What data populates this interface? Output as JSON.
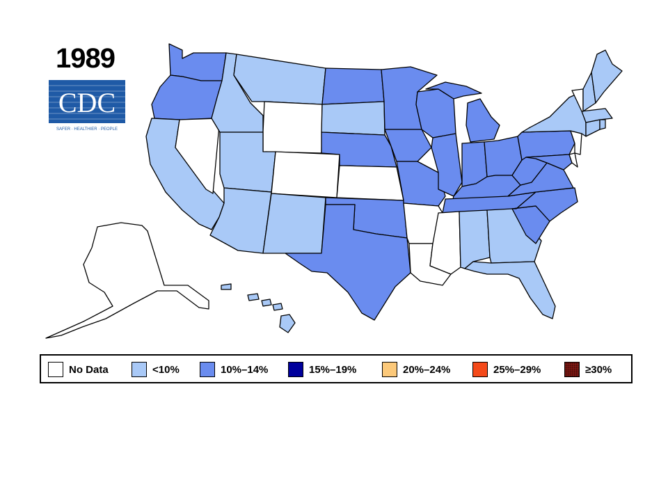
{
  "year": "1989",
  "logo": {
    "text": "CDC",
    "tagline": "SAFER · HEALTHIER · PEOPLE"
  },
  "colors": {
    "no_data": "#ffffff",
    "lt10": "#a9c9f7",
    "p10_14": "#6a8cef",
    "p15_19": "#00009c",
    "p20_24": "#fcc97a",
    "p25_29": "#f44a1a",
    "ge30": "#8b1a14",
    "outline": "#000000"
  },
  "legend": [
    {
      "key": "no_data",
      "label": "No Data"
    },
    {
      "key": "lt10",
      "label": "<10%"
    },
    {
      "key": "p10_14",
      "label": "10%–14%"
    },
    {
      "key": "p15_19",
      "label": "15%–19%"
    },
    {
      "key": "p20_24",
      "label": "20%–24%"
    },
    {
      "key": "p25_29",
      "label": "25%–29%"
    },
    {
      "key": "ge30",
      "label": "≥30%"
    }
  ],
  "states": [
    {
      "id": "WA",
      "class": "p10_14"
    },
    {
      "id": "OR",
      "class": "p10_14"
    },
    {
      "id": "CA",
      "class": "lt10"
    },
    {
      "id": "NV",
      "class": "no_data"
    },
    {
      "id": "ID",
      "class": "lt10"
    },
    {
      "id": "MT",
      "class": "lt10"
    },
    {
      "id": "WY",
      "class": "no_data"
    },
    {
      "id": "UT",
      "class": "lt10"
    },
    {
      "id": "CO",
      "class": "no_data"
    },
    {
      "id": "AZ",
      "class": "lt10"
    },
    {
      "id": "NM",
      "class": "lt10"
    },
    {
      "id": "ND",
      "class": "p10_14"
    },
    {
      "id": "SD",
      "class": "lt10"
    },
    {
      "id": "NE",
      "class": "p10_14"
    },
    {
      "id": "KS",
      "class": "no_data"
    },
    {
      "id": "OK",
      "class": "p10_14"
    },
    {
      "id": "TX",
      "class": "p10_14"
    },
    {
      "id": "MN",
      "class": "p10_14"
    },
    {
      "id": "IA",
      "class": "p10_14"
    },
    {
      "id": "MO",
      "class": "p10_14"
    },
    {
      "id": "AR",
      "class": "no_data"
    },
    {
      "id": "LA",
      "class": "no_data"
    },
    {
      "id": "WI",
      "class": "p10_14"
    },
    {
      "id": "IL",
      "class": "p10_14"
    },
    {
      "id": "MI",
      "class": "p10_14"
    },
    {
      "id": "IN",
      "class": "p10_14"
    },
    {
      "id": "OH",
      "class": "p10_14"
    },
    {
      "id": "KY",
      "class": "p10_14"
    },
    {
      "id": "TN",
      "class": "p10_14"
    },
    {
      "id": "MS",
      "class": "no_data"
    },
    {
      "id": "AL",
      "class": "lt10"
    },
    {
      "id": "GA",
      "class": "lt10"
    },
    {
      "id": "FL",
      "class": "lt10"
    },
    {
      "id": "SC",
      "class": "p10_14"
    },
    {
      "id": "NC",
      "class": "p10_14"
    },
    {
      "id": "VA",
      "class": "p10_14"
    },
    {
      "id": "WV",
      "class": "p10_14"
    },
    {
      "id": "PA",
      "class": "p10_14"
    },
    {
      "id": "NY",
      "class": "lt10"
    },
    {
      "id": "MD",
      "class": "p10_14"
    },
    {
      "id": "DE",
      "class": "no_data"
    },
    {
      "id": "NJ",
      "class": "no_data"
    },
    {
      "id": "CT",
      "class": "lt10"
    },
    {
      "id": "RI",
      "class": "lt10"
    },
    {
      "id": "MA",
      "class": "lt10"
    },
    {
      "id": "VT",
      "class": "no_data"
    },
    {
      "id": "NH",
      "class": "lt10"
    },
    {
      "id": "ME",
      "class": "lt10"
    },
    {
      "id": "AK",
      "class": "no_data"
    },
    {
      "id": "HI",
      "class": "lt10"
    }
  ]
}
